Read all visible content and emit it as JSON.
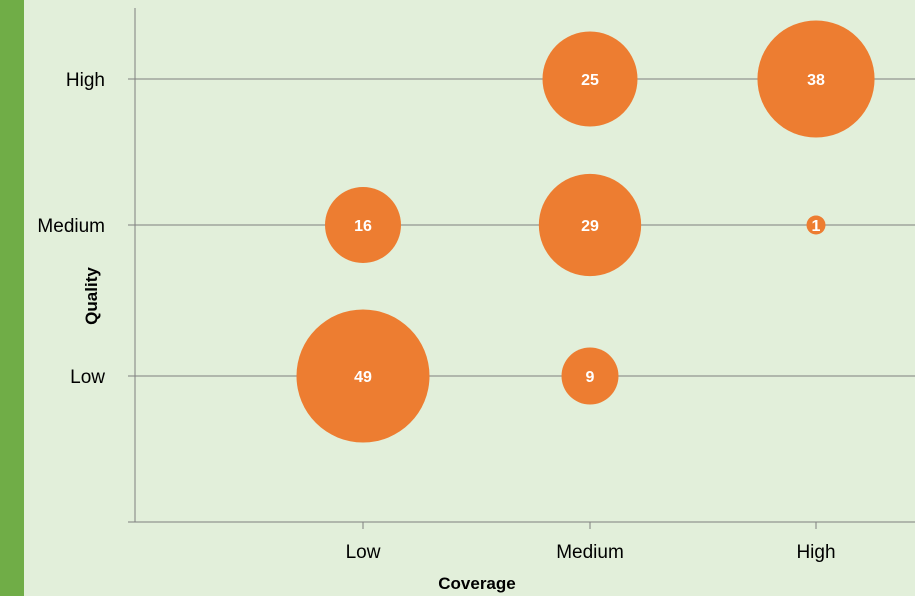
{
  "colors": {
    "background": "#e2efda",
    "accent_bar": "#70ad47",
    "bubble": "#ed7d31",
    "gridline": "#7f7f7f"
  },
  "chart_data": {
    "type": "bubble",
    "xlabel": "Coverage",
    "ylabel": "Quality",
    "x_categories": [
      "Low",
      "Medium",
      "High"
    ],
    "y_categories": [
      "Low",
      "Medium",
      "High"
    ],
    "grid": true,
    "points": [
      {
        "x": "Medium",
        "y": "High",
        "value": 25
      },
      {
        "x": "High",
        "y": "High",
        "value": 38
      },
      {
        "x": "Low",
        "y": "Medium",
        "value": 16
      },
      {
        "x": "Medium",
        "y": "Medium",
        "value": 29
      },
      {
        "x": "High",
        "y": "Medium",
        "value": 1
      },
      {
        "x": "Low",
        "y": "Low",
        "value": 49
      },
      {
        "x": "Medium",
        "y": "Low",
        "value": 9
      }
    ]
  }
}
